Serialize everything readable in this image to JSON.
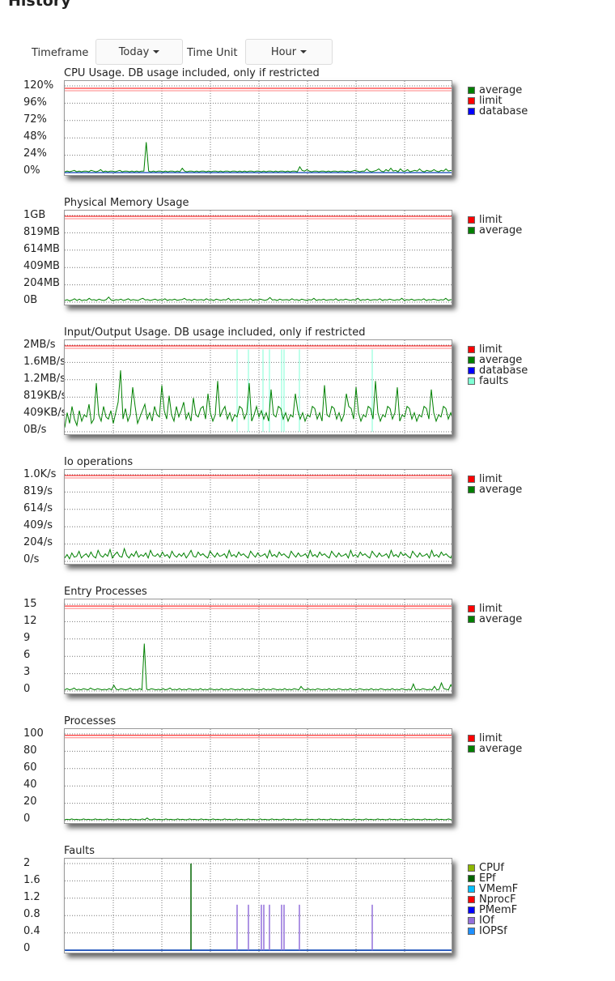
{
  "page": {
    "title": "History"
  },
  "controls": {
    "timeframe_label": "Timeframe",
    "timeframe_value": "Today",
    "timeunit_label": "Time Unit",
    "timeunit_value": "Hour"
  },
  "chart_data": [
    {
      "type": "line",
      "title": "CPU Usage. DB usage included, only if restricted",
      "yticks": [
        "120%",
        "96%",
        "72%",
        "48%",
        "24%",
        "0%"
      ],
      "ylim": [
        0,
        120
      ],
      "grid": true,
      "legend_position": "right",
      "legend": [
        {
          "name": "average",
          "color": "#008000"
        },
        {
          "name": "limit",
          "color": "#ff0000"
        },
        {
          "name": "database",
          "color": "#0000ff"
        }
      ],
      "limit": 115,
      "base": 2,
      "series_avg": [
        1,
        2,
        1,
        2,
        3,
        1,
        2,
        1,
        2,
        2,
        1,
        3,
        2,
        1,
        2,
        4,
        1,
        2,
        1,
        2,
        2,
        1,
        2,
        3,
        1,
        2,
        2,
        1,
        2,
        1,
        2,
        1,
        2,
        2,
        42,
        2,
        1,
        2,
        1,
        2,
        2,
        1,
        2,
        1,
        2,
        2,
        1,
        2,
        1,
        6,
        2,
        1,
        2,
        2,
        1,
        2,
        1,
        2,
        2,
        1,
        2,
        1,
        2,
        2,
        1,
        2,
        1,
        2,
        2,
        1,
        2,
        2,
        1,
        2,
        1,
        2,
        1,
        2,
        2,
        1,
        2,
        2,
        1,
        2,
        1,
        2,
        2,
        1,
        2,
        1,
        2,
        2,
        1,
        2,
        1,
        2,
        2,
        1,
        8,
        3,
        2,
        4,
        2,
        1,
        2,
        2,
        1,
        2,
        2,
        1,
        2,
        1,
        2,
        2,
        1,
        2,
        2,
        1,
        2,
        1,
        2,
        3,
        2,
        1,
        2,
        2,
        5,
        2,
        1,
        2,
        3,
        5,
        2,
        1,
        4,
        2,
        6,
        2,
        3,
        1,
        5,
        2,
        2,
        4,
        1,
        2,
        3,
        2,
        5,
        2,
        1,
        3,
        2,
        2,
        4,
        2,
        1,
        3,
        2,
        5,
        2,
        3,
        2
      ],
      "database": [
        1,
        1,
        1,
        1,
        1,
        1,
        1,
        1,
        1,
        1,
        1,
        1,
        1,
        1,
        1,
        1,
        1,
        1,
        1,
        1,
        1,
        1,
        1,
        1,
        1,
        1,
        1,
        1,
        1,
        1,
        1,
        1,
        1,
        1,
        1,
        1,
        1,
        1,
        1,
        1,
        1,
        1,
        1,
        1,
        1,
        1,
        1,
        1,
        1,
        1,
        1,
        1,
        1,
        1,
        1,
        1,
        1,
        1,
        1,
        1,
        1,
        1,
        1,
        1,
        1,
        1,
        1,
        1,
        1,
        1,
        1,
        1,
        1,
        1,
        1,
        1,
        1,
        1,
        1,
        1,
        1,
        1,
        1,
        1,
        1,
        1,
        1,
        1,
        1,
        1,
        1,
        1,
        1,
        1,
        1,
        1,
        1,
        1,
        1,
        1,
        1,
        1,
        1,
        1,
        1,
        1,
        1,
        1,
        1,
        1,
        1,
        1,
        1,
        1,
        1,
        1,
        1,
        1,
        1,
        1,
        1,
        1,
        1,
        1,
        1,
        1,
        1,
        1,
        1,
        1,
        1,
        1,
        1,
        1,
        1,
        1,
        1,
        1,
        1,
        1,
        1,
        1,
        1,
        1,
        1,
        1,
        1,
        1,
        1,
        1,
        1,
        1,
        1,
        1,
        1,
        1,
        1,
        1,
        1,
        1,
        1,
        1,
        1
      ]
    },
    {
      "type": "line",
      "title": "Physical Memory Usage",
      "yticks": [
        "1GB",
        "819MB",
        "614MB",
        "409MB",
        "204MB",
        "0B"
      ],
      "ylim": [
        0,
        1024
      ],
      "grid": true,
      "legend_position": "right",
      "legend": [
        {
          "name": "limit",
          "color": "#ff0000"
        },
        {
          "name": "average",
          "color": "#008000"
        }
      ],
      "limit": 1000,
      "series_avg": [
        20,
        30,
        15,
        25,
        40,
        20,
        35,
        18,
        28,
        22,
        45,
        25,
        30,
        20,
        35,
        25,
        20,
        30,
        60,
        25,
        20,
        30,
        25,
        35,
        20,
        28,
        40,
        22,
        30,
        25,
        20,
        35,
        45,
        25,
        30,
        20,
        28,
        35,
        22,
        30,
        25,
        40,
        20,
        30,
        25,
        35,
        22,
        28,
        30,
        45,
        25,
        30,
        20,
        35,
        25,
        28,
        30,
        22,
        40,
        25,
        30,
        20,
        35,
        28,
        22,
        30,
        25,
        45,
        20,
        30,
        25,
        35,
        22,
        28,
        30,
        25,
        40,
        20,
        30,
        25,
        35,
        28,
        22,
        30,
        55,
        25,
        30,
        20,
        35,
        25,
        28,
        30,
        22,
        40,
        25,
        30,
        20,
        35,
        28,
        22,
        30,
        25,
        45,
        20,
        30,
        25,
        35,
        22,
        28,
        30,
        25,
        40,
        20,
        30,
        25,
        35,
        28,
        22,
        30,
        25,
        45,
        20,
        30,
        25,
        35,
        22,
        28,
        30,
        25,
        40,
        20,
        30,
        25,
        35,
        28,
        22,
        30,
        25,
        45,
        20,
        30,
        25,
        35,
        22,
        28,
        30,
        25,
        40,
        20,
        30,
        25,
        35,
        28,
        22,
        30,
        25,
        45,
        20,
        30,
        25
      ]
    },
    {
      "type": "line",
      "title": "Input/Output Usage. DB usage included, only if restricted",
      "yticks": [
        "2MB/s",
        "1.6MB/s",
        "1.2MB/s",
        "819KB/s",
        "409KB/s",
        "0B/s"
      ],
      "ylim": [
        0,
        2048
      ],
      "grid": true,
      "legend_position": "right",
      "legend": [
        {
          "name": "limit",
          "color": "#ff0000"
        },
        {
          "name": "average",
          "color": "#008000"
        },
        {
          "name": "database",
          "color": "#0000ff"
        },
        {
          "name": "faults",
          "color": "#7fffd4"
        }
      ],
      "limit": 2000,
      "series_avg": [
        100,
        450,
        200,
        600,
        300,
        150,
        500,
        250,
        400,
        350,
        650,
        200,
        300,
        1150,
        400,
        250,
        600,
        350,
        300,
        500,
        200,
        450,
        700,
        1450,
        300,
        550,
        250,
        400,
        1050,
        600,
        200,
        350,
        500,
        650,
        300,
        450,
        250,
        600,
        400,
        350,
        1100,
        500,
        300,
        850,
        400,
        250,
        600,
        350,
        500,
        700,
        300,
        450,
        250,
        800,
        400,
        350,
        550,
        600,
        300,
        900,
        450,
        250,
        400,
        1200,
        350,
        500,
        600,
        300,
        450,
        250,
        400,
        350,
        600,
        550,
        300,
        450,
        1150,
        250,
        400,
        600,
        350,
        500,
        300,
        450,
        250,
        1000,
        400,
        350,
        600,
        550,
        300,
        450,
        250,
        400,
        350,
        900,
        500,
        300,
        450,
        250,
        400,
        350,
        600,
        550,
        300,
        450,
        250,
        1100,
        400,
        350,
        600,
        550,
        300,
        450,
        250,
        400,
        900,
        600,
        550,
        300,
        1050,
        450,
        250,
        400,
        350,
        600,
        550,
        300,
        1200,
        450,
        250,
        400,
        350,
        600,
        550,
        300,
        450,
        1050,
        250,
        400,
        350,
        600,
        550,
        300,
        450,
        250,
        400,
        350,
        600,
        550,
        300,
        1000,
        450,
        250,
        400,
        350,
        600,
        550,
        300,
        450,
        250
      ],
      "faults_x": [
        213,
        227,
        245,
        253,
        268,
        271,
        290,
        380
      ]
    },
    {
      "type": "line",
      "title": "Io operations",
      "yticks": [
        "1.0K/s",
        "819/s",
        "614/s",
        "409/s",
        "204/s",
        "0/s"
      ],
      "ylim": [
        0,
        1024
      ],
      "grid": true,
      "legend_position": "right",
      "legend": [
        {
          "name": "limit",
          "color": "#ff0000"
        },
        {
          "name": "average",
          "color": "#008000"
        }
      ],
      "limit": 1000,
      "series_avg": [
        40,
        80,
        30,
        100,
        50,
        60,
        120,
        40,
        70,
        90,
        50,
        110,
        60,
        40,
        130,
        70,
        50,
        90,
        60,
        140,
        40,
        80,
        110,
        60,
        50,
        150,
        70,
        40,
        90,
        60,
        120,
        50,
        80,
        60,
        100,
        40,
        130,
        70,
        60,
        90,
        50,
        110,
        60,
        80,
        40,
        120,
        70,
        50,
        90,
        60,
        100,
        40,
        80,
        130,
        60,
        50,
        110,
        70,
        90,
        60,
        40,
        120,
        80,
        50,
        100,
        60,
        70,
        90,
        40,
        130,
        60,
        80,
        50,
        110,
        70,
        90,
        60,
        40,
        120,
        80,
        50,
        100,
        60,
        70,
        90,
        40,
        130,
        60,
        80,
        50,
        110,
        70,
        90,
        60,
        40,
        120,
        80,
        50,
        100,
        60,
        70,
        90,
        40,
        130,
        60,
        80,
        50,
        110,
        70,
        90,
        60,
        40,
        120,
        80,
        50,
        100,
        60,
        70,
        90,
        40,
        130,
        60,
        80,
        50,
        110,
        70,
        90,
        60,
        40,
        120,
        80,
        50,
        100,
        60,
        70,
        90,
        40,
        130,
        60,
        80,
        50,
        110,
        70,
        90,
        60,
        40,
        120,
        80,
        50,
        100,
        60,
        70,
        90,
        40,
        130,
        60,
        80,
        50,
        110,
        70,
        90,
        60,
        40,
        120
      ]
    },
    {
      "type": "line",
      "title": "Entry Processes",
      "yticks": [
        "15",
        "12",
        "9",
        "6",
        "3",
        "0"
      ],
      "ylim": [
        0,
        15
      ],
      "grid": true,
      "legend_position": "right",
      "legend": [
        {
          "name": "limit",
          "color": "#ff0000"
        },
        {
          "name": "average",
          "color": "#008000"
        }
      ],
      "limit": 14.5,
      "series_avg": [
        0.2,
        0.4,
        0.2,
        0.3,
        0.5,
        0.2,
        0.3,
        0.2,
        0.4,
        0.3,
        0.2,
        0.5,
        0.3,
        0.2,
        0.4,
        0.3,
        0.2,
        0.3,
        0.2,
        0.4,
        0.2,
        1.0,
        0.3,
        0.2,
        0.4,
        0.3,
        0.2,
        0.3,
        0.5,
        0.2,
        0.3,
        0.2,
        0.4,
        0.2,
        8.2,
        0.3,
        0.2,
        0.4,
        0.3,
        0.2,
        0.3,
        0.2,
        0.4,
        0.2,
        0.3,
        0.5,
        0.2,
        0.3,
        0.2,
        0.4,
        0.2,
        0.3,
        0.2,
        0.4,
        0.3,
        0.2,
        0.3,
        0.2,
        0.4,
        0.2,
        0.3,
        0.2,
        0.4,
        0.3,
        0.2,
        0.3,
        0.2,
        0.4,
        0.2,
        0.3,
        0.2,
        0.4,
        0.3,
        0.2,
        0.3,
        0.2,
        0.4,
        0.2,
        0.3,
        0.2,
        0.4,
        0.3,
        0.2,
        0.3,
        0.2,
        0.4,
        0.2,
        0.3,
        0.2,
        0.4,
        0.3,
        0.2,
        0.3,
        0.2,
        0.4,
        0.2,
        0.3,
        0.2,
        0.4,
        0.3,
        0.2,
        0.8,
        0.3,
        0.2,
        0.4,
        0.2,
        0.3,
        0.2,
        0.4,
        0.3,
        0.2,
        0.3,
        0.2,
        0.4,
        0.2,
        0.3,
        0.2,
        0.4,
        0.3,
        0.2,
        0.3,
        0.2,
        0.4,
        0.2,
        0.3,
        0.2,
        0.4,
        0.3,
        0.2,
        0.3,
        0.2,
        0.4,
        0.2,
        0.3,
        0.2,
        0.4,
        0.3,
        0.2,
        0.3,
        0.2,
        0.4,
        0.2,
        0.3,
        0.2,
        0.4,
        0.3,
        0.2,
        0.3,
        0.2,
        1.2,
        0.2,
        0.3,
        0.2,
        0.4,
        0.3,
        0.2,
        0.3,
        0.2,
        0.8,
        0.2,
        0.3,
        1.4,
        0.4,
        0.3,
        0.2,
        1.1,
        0.2
      ],
      "base": 0.2
    },
    {
      "type": "line",
      "title": "Processes",
      "yticks": [
        "100",
        "80",
        "60",
        "40",
        "20",
        "0"
      ],
      "ylim": [
        0,
        100
      ],
      "grid": true,
      "legend_position": "right",
      "legend": [
        {
          "name": "limit",
          "color": "#ff0000"
        },
        {
          "name": "average",
          "color": "#008000"
        }
      ],
      "limit": 97,
      "series_avg": [
        1,
        1.5,
        1,
        2,
        1,
        1.5,
        1,
        1,
        2,
        1,
        1.5,
        1,
        1,
        2,
        1,
        1.5,
        1,
        1,
        2,
        1,
        1.5,
        1,
        1,
        2,
        1,
        1.5,
        1,
        1,
        2,
        1,
        1.5,
        1,
        1,
        2,
        1,
        3,
        1,
        1,
        2,
        1,
        1.5,
        1,
        1,
        2,
        1,
        1.5,
        1,
        1,
        2,
        1,
        1.5,
        1,
        1,
        2,
        1,
        1.5,
        1,
        1,
        2,
        1,
        1.5,
        1,
        1,
        2,
        1,
        1.5,
        1,
        1,
        2,
        1,
        1.5,
        1,
        1,
        2,
        1,
        1.5,
        1,
        1,
        2,
        1,
        1.5,
        1,
        1,
        2,
        1,
        1.5,
        1,
        1,
        2,
        1,
        1.5,
        1,
        1,
        2,
        1,
        1.5,
        1,
        1,
        2,
        1,
        1.5,
        1,
        1,
        2,
        1,
        1.5,
        1,
        1,
        2,
        1,
        1.5,
        1,
        1,
        2,
        1,
        1.5,
        1,
        1,
        2,
        1,
        1.5,
        1,
        1,
        2,
        1,
        1.5,
        1,
        1,
        2,
        1,
        1.5,
        1,
        1,
        2,
        1,
        1.5,
        1,
        1,
        2,
        1,
        1.5,
        1,
        1,
        2,
        1,
        1.5,
        1,
        1,
        2,
        1,
        1.5,
        1,
        1,
        2,
        1,
        1.5,
        1,
        1,
        2,
        1,
        1.5,
        1,
        1,
        2,
        1,
        1.5
      ]
    },
    {
      "type": "line",
      "title": "Faults",
      "yticks": [
        "2",
        "1.6",
        "1.2",
        "0.8",
        "0.4",
        "0"
      ],
      "ylim": [
        0,
        2
      ],
      "grid": true,
      "legend_position": "right",
      "legend": [
        {
          "name": "CPUf",
          "color": "#8db600"
        },
        {
          "name": "EPf",
          "color": "#006400"
        },
        {
          "name": "VMemF",
          "color": "#00bfff"
        },
        {
          "name": "NprocF",
          "color": "#ff0000"
        },
        {
          "name": "PMemF",
          "color": "#0000ff"
        },
        {
          "name": "IOf",
          "color": "#9370db"
        },
        {
          "name": "IOPSf",
          "color": "#1e90ff"
        }
      ],
      "ep_spikes": [
        {
          "x": 156,
          "v": 2.0
        }
      ],
      "io_spikes": [
        {
          "x": 213,
          "v": 1.05
        },
        {
          "x": 227,
          "v": 1.05
        },
        {
          "x": 243,
          "v": 1.05
        },
        {
          "x": 246,
          "v": 1.05
        },
        {
          "x": 253,
          "v": 1.05
        },
        {
          "x": 268,
          "v": 1.05
        },
        {
          "x": 271,
          "v": 1.05
        },
        {
          "x": 290,
          "v": 1.05
        },
        {
          "x": 380,
          "v": 1.05
        }
      ]
    }
  ]
}
